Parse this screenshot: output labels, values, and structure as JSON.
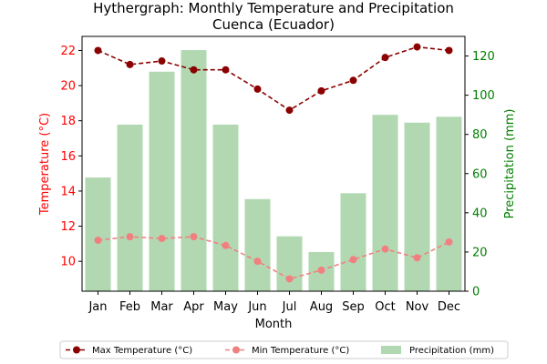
{
  "chart_data": {
    "type": "bar+line",
    "title": "Hythergraph: Monthly Temperature and Precipitation",
    "subtitle": "Cuenca (Ecuador)",
    "xlabel": "Month",
    "ylabel_left": "Temperature (°C)",
    "ylabel_right": "Precipitation (mm)",
    "categories": [
      "Jan",
      "Feb",
      "Mar",
      "Apr",
      "May",
      "Jun",
      "Jul",
      "Aug",
      "Sep",
      "Oct",
      "Nov",
      "Dec"
    ],
    "ylim_left": [
      8.3,
      22.8
    ],
    "ylim_right": [
      0,
      130
    ],
    "yticks_left": [
      10,
      12,
      14,
      16,
      18,
      20,
      22
    ],
    "yticks_right": [
      0,
      20,
      40,
      60,
      80,
      100,
      120
    ],
    "grid": false,
    "legend_position": "bottom-center",
    "series": [
      {
        "name": "Max Temperature (°C)",
        "type": "line",
        "axis": "left",
        "color": "#8b0000",
        "linestyle": "dashed",
        "marker": "circle",
        "values": [
          22.0,
          21.2,
          21.4,
          20.9,
          20.9,
          19.8,
          18.6,
          19.7,
          20.3,
          21.6,
          22.2,
          22.0
        ]
      },
      {
        "name": "Min Temperature (°C)",
        "type": "line",
        "axis": "left",
        "color": "#f08080",
        "linestyle": "dashed",
        "marker": "circle",
        "values": [
          11.2,
          11.4,
          11.3,
          11.4,
          10.9,
          10.0,
          9.0,
          9.5,
          10.1,
          10.7,
          10.2,
          11.1
        ]
      },
      {
        "name": "Precipitation (mm)",
        "type": "bar",
        "axis": "right",
        "color": "#b2d8b2",
        "values": [
          58,
          85,
          112,
          123,
          85,
          47,
          28,
          20,
          50,
          90,
          86,
          89
        ]
      }
    ],
    "colors": {
      "left_axis": "#ff0000",
      "right_axis": "#008000",
      "title": "#000000"
    }
  }
}
